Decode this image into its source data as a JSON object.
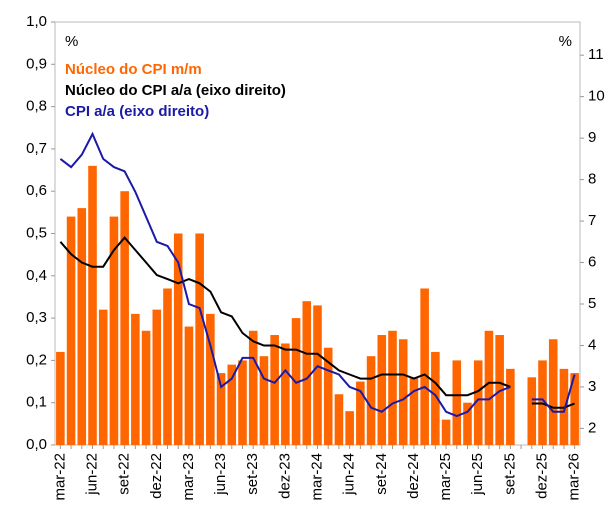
{
  "chart_data": {
    "type": "bar_line",
    "left_unit": "%",
    "right_unit": "%",
    "categories": [
      "mar-22",
      null,
      null,
      "jun-22",
      null,
      null,
      "set-22",
      null,
      null,
      "dez-22",
      null,
      null,
      "mar-23",
      null,
      null,
      "jun-23",
      null,
      null,
      "set-23",
      null,
      null,
      "dez-23",
      null,
      null,
      "mar-24",
      null,
      null,
      "jun-24",
      null,
      null,
      "set-24",
      null,
      null,
      "dez-24",
      null,
      null,
      "mar-25",
      null,
      null,
      "jun-25",
      null,
      null,
      "set-25",
      null,
      null,
      "dez-25",
      null,
      null,
      "mar-26"
    ],
    "series": [
      {
        "name": "Núcleo do CPI m/m",
        "color": "#ff6600",
        "type": "bar",
        "axis": "y",
        "values": [
          0.22,
          0.54,
          0.56,
          0.66,
          0.32,
          0.54,
          0.6,
          0.31,
          0.27,
          0.32,
          0.37,
          0.5,
          0.28,
          0.5,
          0.31,
          0.17,
          0.19,
          0.2,
          0.27,
          0.21,
          0.26,
          0.24,
          0.3,
          0.34,
          0.33,
          0.23,
          0.12,
          0.08,
          0.15,
          0.21,
          0.26,
          0.27,
          0.25,
          0.16,
          0.37,
          0.22,
          0.06,
          0.2,
          0.1,
          0.2,
          0.27,
          0.26,
          0.18,
          null,
          0.16,
          0.2,
          0.25,
          0.18,
          0.17
        ]
      },
      {
        "name": "Núcleo do CPI a/a (eixo direito)",
        "color": "#000000",
        "type": "line",
        "axis": "y2",
        "values": [
          6.5,
          6.2,
          6.0,
          5.9,
          5.9,
          6.3,
          6.6,
          6.3,
          6.0,
          5.7,
          5.6,
          5.5,
          5.6,
          5.5,
          5.3,
          4.8,
          4.7,
          4.3,
          4.1,
          4.0,
          4.0,
          3.9,
          3.9,
          3.8,
          3.8,
          3.6,
          3.4,
          3.3,
          3.2,
          3.2,
          3.3,
          3.3,
          3.3,
          3.2,
          3.3,
          3.1,
          2.8,
          2.8,
          2.8,
          2.9,
          3.1,
          3.1,
          3.0,
          null,
          2.6,
          2.6,
          2.5,
          2.5,
          2.6
        ]
      },
      {
        "name": "CPI a/a (eixo direito)",
        "color": "#1a1aa6",
        "type": "line",
        "axis": "y2",
        "values": [
          8.5,
          8.3,
          8.6,
          9.1,
          8.5,
          8.3,
          8.2,
          7.7,
          7.1,
          6.5,
          6.4,
          6.0,
          5.0,
          4.9,
          4.0,
          3.0,
          3.2,
          3.7,
          3.7,
          3.2,
          3.1,
          3.4,
          3.1,
          3.2,
          3.5,
          3.4,
          3.3,
          3.0,
          2.9,
          2.5,
          2.4,
          2.6,
          2.7,
          2.9,
          3.0,
          2.8,
          2.4,
          2.3,
          2.4,
          2.7,
          2.7,
          2.9,
          3.0,
          null,
          2.7,
          2.7,
          2.4,
          2.4,
          3.3
        ]
      }
    ],
    "ylim": [
      0,
      1
    ],
    "yticks": [
      {
        "value": 0,
        "label": "0,0"
      },
      {
        "value": 0.1,
        "label": "0,1"
      },
      {
        "value": 0.2,
        "label": "0,2"
      },
      {
        "value": 0.3,
        "label": "0,3"
      },
      {
        "value": 0.4,
        "label": "0,4"
      },
      {
        "value": 0.5,
        "label": "0,5"
      },
      {
        "value": 0.6,
        "label": "0,6"
      },
      {
        "value": 0.7,
        "label": "0,7"
      },
      {
        "value": 0.8,
        "label": "0,8"
      },
      {
        "value": 0.9,
        "label": "0,9"
      },
      {
        "value": 1,
        "label": "1,0"
      }
    ],
    "y2lim": [
      1.6,
      11.8
    ],
    "y2ticks": [
      2,
      3,
      4,
      5,
      6,
      7,
      8,
      9,
      10,
      11
    ],
    "grid": false
  }
}
